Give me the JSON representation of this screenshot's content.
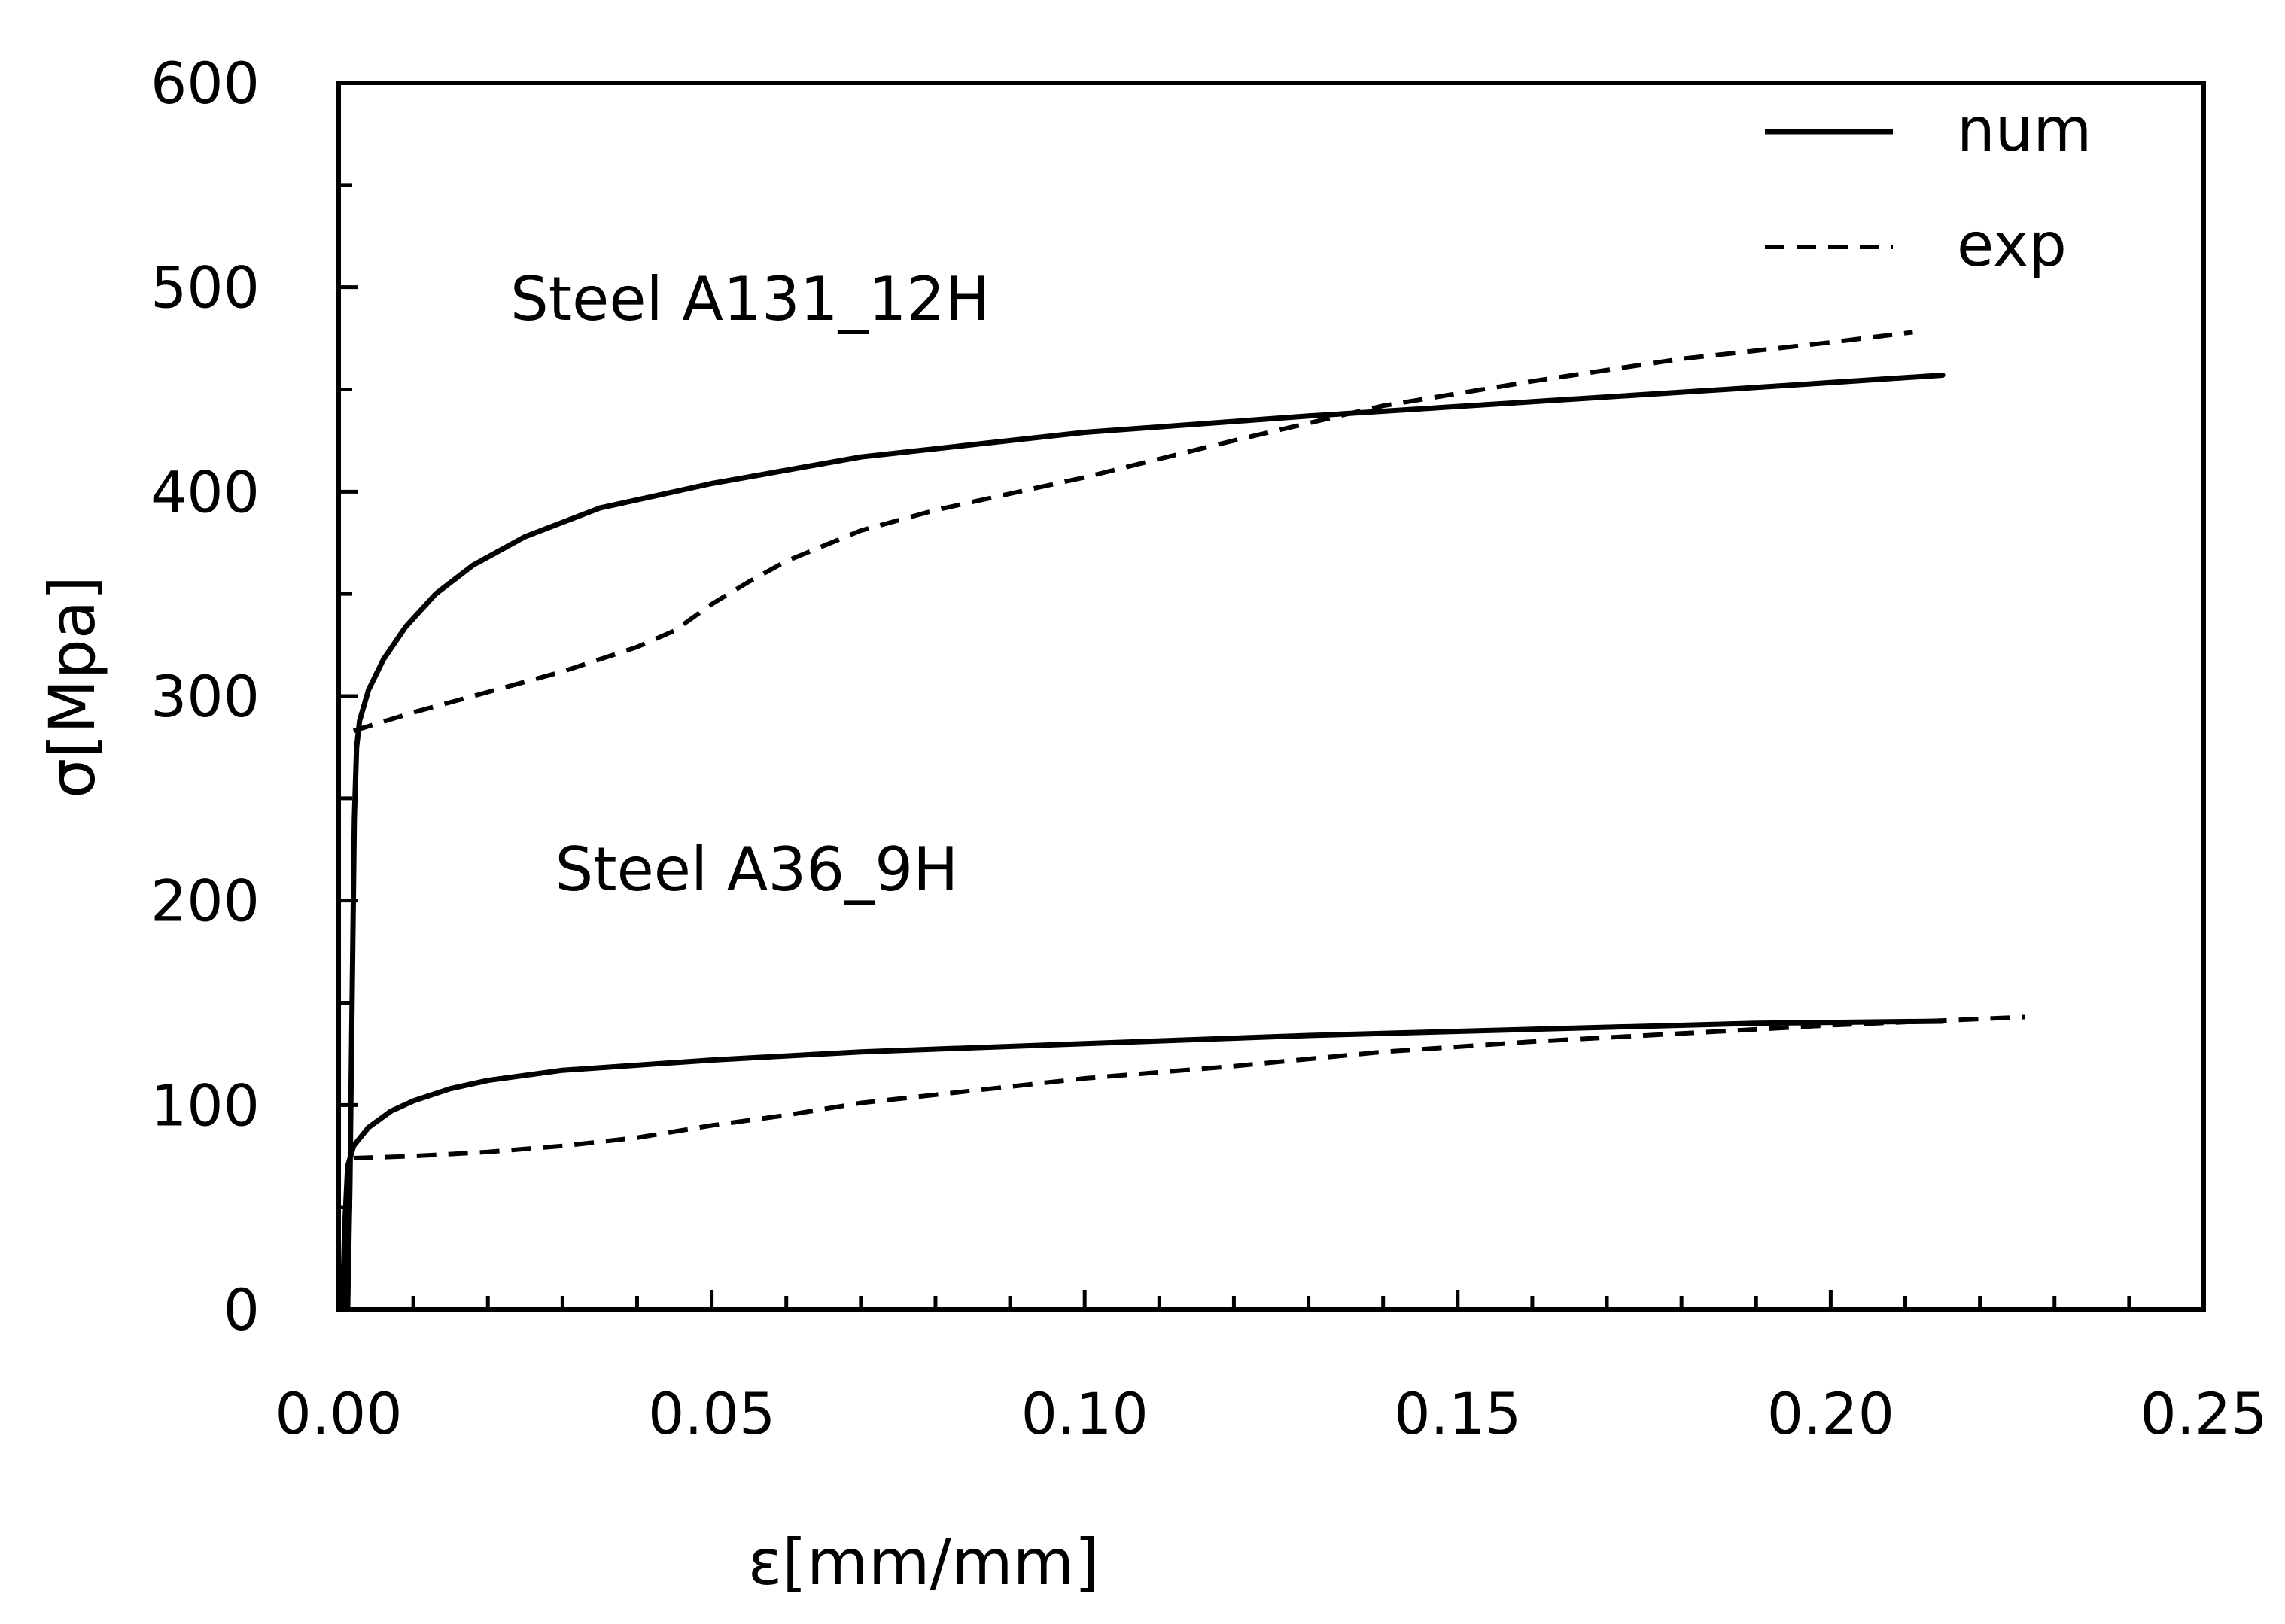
{
  "chart_data": {
    "type": "line",
    "title": "",
    "xlabel": "ε[mm/mm]",
    "ylabel": "σ[Mpa]",
    "xlim": [
      0,
      0.25
    ],
    "ylim": [
      0,
      600
    ],
    "x_ticks": [
      0,
      0.05,
      0.1,
      0.15,
      0.2,
      0.25
    ],
    "x_tick_labels": [
      "0.00",
      "0.05",
      "0.10",
      "0.15",
      "0.20",
      "0.25"
    ],
    "y_ticks": [
      0,
      100,
      200,
      300,
      400,
      500,
      600
    ],
    "y_tick_labels": [
      "0",
      "100",
      "200",
      "300",
      "400",
      "500",
      "600"
    ],
    "grid": false,
    "legend": {
      "position": "top-right",
      "entries": [
        {
          "label": "num",
          "style": "solid"
        },
        {
          "label": "exp",
          "style": "dashed"
        }
      ]
    },
    "annotations": [
      {
        "text": "Steel A131_12H",
        "x": 0.023,
        "y": 484
      },
      {
        "text": "Steel A36_9H",
        "x": 0.029,
        "y": 205
      }
    ],
    "series": [
      {
        "group": "Steel A131_12H",
        "legend_ref": "num",
        "style": "solid",
        "points": [
          [
            0.0012,
            0
          ],
          [
            0.0015,
            60
          ],
          [
            0.0018,
            150
          ],
          [
            0.0021,
            240
          ],
          [
            0.0024,
            275
          ],
          [
            0.0028,
            288
          ],
          [
            0.004,
            303
          ],
          [
            0.006,
            318
          ],
          [
            0.009,
            334
          ],
          [
            0.013,
            350
          ],
          [
            0.018,
            364
          ],
          [
            0.025,
            378
          ],
          [
            0.035,
            392
          ],
          [
            0.05,
            404
          ],
          [
            0.07,
            417
          ],
          [
            0.1,
            429
          ],
          [
            0.13,
            437
          ],
          [
            0.16,
            444
          ],
          [
            0.19,
            451
          ],
          [
            0.215,
            457
          ]
        ]
      },
      {
        "group": "Steel A131_12H",
        "legend_ref": "exp",
        "style": "dashed",
        "points": [
          [
            0.002,
            283
          ],
          [
            0.01,
            292
          ],
          [
            0.02,
            302
          ],
          [
            0.03,
            312
          ],
          [
            0.04,
            324
          ],
          [
            0.045,
            332
          ],
          [
            0.05,
            345
          ],
          [
            0.055,
            356
          ],
          [
            0.06,
            366
          ],
          [
            0.07,
            381
          ],
          [
            0.08,
            391
          ],
          [
            0.09,
            399
          ],
          [
            0.1,
            407
          ],
          [
            0.12,
            425
          ],
          [
            0.14,
            442
          ],
          [
            0.16,
            454
          ],
          [
            0.18,
            465
          ],
          [
            0.2,
            473
          ],
          [
            0.211,
            478
          ]
        ]
      },
      {
        "group": "Steel A36_9H",
        "legend_ref": "num",
        "style": "solid",
        "points": [
          [
            0.0005,
            0
          ],
          [
            0.0008,
            40
          ],
          [
            0.0012,
            70
          ],
          [
            0.002,
            80
          ],
          [
            0.004,
            89
          ],
          [
            0.007,
            97
          ],
          [
            0.01,
            102
          ],
          [
            0.015,
            108
          ],
          [
            0.02,
            112
          ],
          [
            0.03,
            117
          ],
          [
            0.05,
            122
          ],
          [
            0.07,
            126
          ],
          [
            0.1,
            130
          ],
          [
            0.13,
            134
          ],
          [
            0.16,
            137
          ],
          [
            0.19,
            140
          ],
          [
            0.215,
            141
          ]
        ]
      },
      {
        "group": "Steel A36_9H",
        "legend_ref": "exp",
        "style": "dashed",
        "points": [
          [
            0.002,
            74
          ],
          [
            0.01,
            75
          ],
          [
            0.02,
            77
          ],
          [
            0.03,
            80
          ],
          [
            0.04,
            84
          ],
          [
            0.05,
            90
          ],
          [
            0.06,
            95
          ],
          [
            0.07,
            101
          ],
          [
            0.08,
            105
          ],
          [
            0.1,
            113
          ],
          [
            0.12,
            119
          ],
          [
            0.14,
            126
          ],
          [
            0.16,
            131
          ],
          [
            0.18,
            135
          ],
          [
            0.2,
            139
          ],
          [
            0.226,
            143
          ]
        ]
      }
    ]
  }
}
